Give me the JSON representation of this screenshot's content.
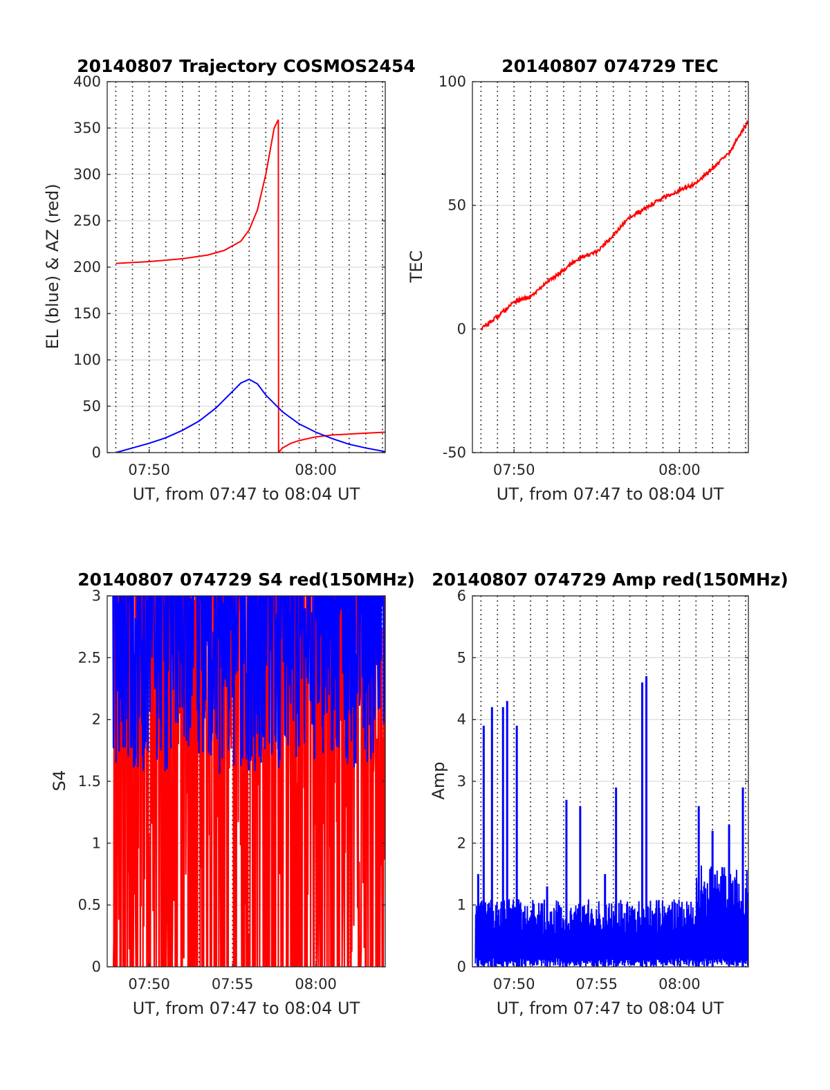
{
  "chart_data": [
    {
      "type": "line",
      "title": "20140807 Trajectory COSMOS2454",
      "xlabel": "UT, from 07:47 to 08:04 UT",
      "ylabel": "EL (blue) & AZ (red)",
      "xlim": [
        "07:47:29",
        "08:04:10"
      ],
      "ylim": [
        0,
        400
      ],
      "yticks": [
        0,
        50,
        100,
        150,
        200,
        250,
        300,
        350,
        400
      ],
      "xticks": [
        "07:50",
        "08:00"
      ],
      "grid": true,
      "series": [
        {
          "name": "AZ",
          "color": "#ff0000",
          "x": [
            "07:48:00",
            "07:50:00",
            "07:52:00",
            "07:53:30",
            "07:54:30",
            "07:55:30",
            "07:56:00",
            "07:56:30",
            "07:57:00",
            "07:57:30",
            "07:57:45",
            "07:57:46",
            "07:58:00",
            "07:58:30",
            "07:59:00",
            "08:00:00",
            "08:01:00",
            "08:02:00",
            "08:03:00",
            "08:04:10"
          ],
          "values": [
            204,
            206,
            209,
            213,
            218,
            228,
            240,
            262,
            300,
            350,
            359,
            0,
            5,
            10,
            13,
            17,
            19,
            20,
            21,
            22
          ]
        },
        {
          "name": "EL",
          "color": "#0000ff",
          "x": [
            "07:48:00",
            "07:49:00",
            "07:50:00",
            "07:51:00",
            "07:52:00",
            "07:53:00",
            "07:54:00",
            "07:55:00",
            "07:55:30",
            "07:56:00",
            "07:56:30",
            "07:57:00",
            "07:58:00",
            "07:59:00",
            "08:00:00",
            "08:01:00",
            "08:02:00",
            "08:03:00",
            "08:04:10"
          ],
          "values": [
            0,
            5,
            10,
            16,
            24,
            34,
            48,
            66,
            75,
            79,
            74,
            62,
            44,
            31,
            22,
            15,
            9,
            5,
            1
          ]
        }
      ]
    },
    {
      "type": "line",
      "title": "20140807 074729 TEC",
      "xlabel": "UT, from 07:47 to 08:04 UT",
      "ylabel": "TEC",
      "xlim": [
        "07:47:29",
        "08:04:10"
      ],
      "ylim": [
        -50,
        100
      ],
      "yticks": [
        -50,
        0,
        50,
        100
      ],
      "xticks": [
        "07:50",
        "08:00"
      ],
      "grid": true,
      "series": [
        {
          "name": "TEC",
          "color": "#ff0000",
          "x": [
            "07:48:00",
            "07:49:00",
            "07:50:00",
            "07:50:30",
            "07:51:00",
            "07:52:00",
            "07:53:00",
            "07:54:00",
            "07:55:00",
            "07:56:00",
            "07:57:00",
            "07:58:00",
            "07:59:00",
            "08:00:00",
            "08:01:00",
            "08:02:00",
            "08:03:00",
            "08:03:30",
            "08:04:10"
          ],
          "values": [
            0,
            5,
            11,
            12,
            13,
            19,
            24,
            29,
            31,
            38,
            45,
            49,
            53,
            56,
            59,
            65,
            71,
            77,
            84
          ]
        }
      ]
    },
    {
      "type": "line",
      "title": "20140807 074729 S4 red(150MHz)",
      "xlabel": "UT, from 07:47 to 08:04 UT",
      "ylabel": "S4",
      "xlim": [
        "07:47:29",
        "08:04:10"
      ],
      "ylim": [
        0,
        3
      ],
      "yticks": [
        0,
        0.5,
        1,
        1.5,
        2,
        2.5,
        3
      ],
      "xticks": [
        "07:50",
        "07:55",
        "08:00"
      ],
      "grid": true,
      "series": [
        {
          "name": "red",
          "color": "#ff0000",
          "noise_range": [
            0,
            3
          ]
        },
        {
          "name": "blue",
          "color": "#0000ff",
          "noise_range": [
            0.6,
            3
          ]
        }
      ]
    },
    {
      "type": "line",
      "title": "20140807 074729 Amp red(150MHz)",
      "xlabel": "UT, from 07:47 to 08:04 UT",
      "ylabel": "Amp",
      "xlim": [
        "07:47:29",
        "08:04:10"
      ],
      "ylim": [
        0,
        6
      ],
      "yticks": [
        0,
        1,
        2,
        3,
        4,
        5,
        6
      ],
      "xticks": [
        "07:50",
        "07:55",
        "08:00"
      ],
      "grid": true,
      "series": [
        {
          "name": "Amp",
          "color": "#0000ff",
          "peaks_x": [
            "07:47:50",
            "07:48:10",
            "07:48:40",
            "07:49:20",
            "07:49:35",
            "07:50:10",
            "07:52:00",
            "07:53:10",
            "07:54:00",
            "07:55:30",
            "07:56:10",
            "07:57:45",
            "07:58:00",
            "08:01:10",
            "08:02:00",
            "08:03:00",
            "08:03:50"
          ],
          "peaks_y": [
            1.5,
            3.9,
            4.2,
            4.2,
            4.3,
            3.9,
            1.3,
            2.7,
            2.6,
            1.5,
            2.9,
            4.6,
            4.7,
            2.6,
            2.2,
            2.3,
            2.9
          ]
        }
      ]
    }
  ]
}
